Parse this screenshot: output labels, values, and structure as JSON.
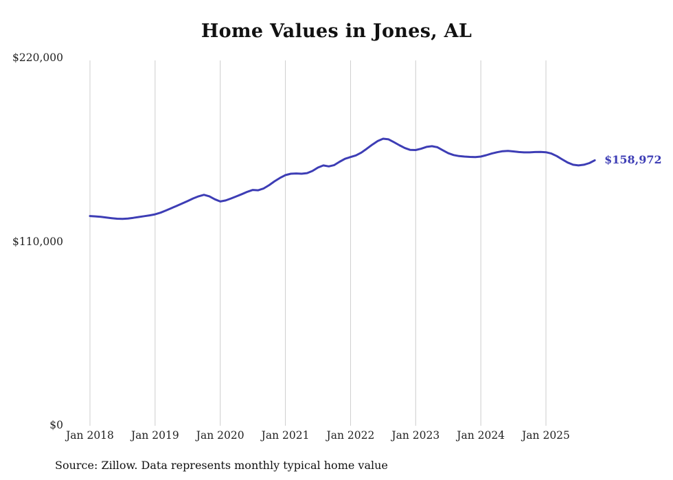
{
  "chart_data": {
    "type": "line",
    "title": "Home Values in Jones, AL",
    "source": "Source: Zillow. Data represents monthly typical home value",
    "series_name": "Monthly typical home value",
    "line_color": "#3d3db5",
    "grid_color": "#cccccc",
    "x_tick_labels": [
      "Jan 2018",
      "Jan 2019",
      "Jan 2020",
      "Jan 2021",
      "Jan 2022",
      "Jan 2023",
      "Jan 2024",
      "Jan 2025"
    ],
    "y_tick_labels": [
      "$220,000",
      "$110,000",
      "$0"
    ],
    "y_ticks": [
      220000,
      110000,
      0
    ],
    "ylim": [
      0,
      220000
    ],
    "grid": "vertical-only",
    "legend": "none",
    "end_label": "$158,972",
    "end_value": 158972,
    "x_start": "2018-01",
    "x_end": "2025-10",
    "values": [
      125600,
      125400,
      125100,
      124700,
      124300,
      124000,
      123900,
      124100,
      124500,
      125000,
      125500,
      126000,
      126600,
      127600,
      128900,
      130300,
      131700,
      133100,
      134600,
      136100,
      137400,
      138300,
      137400,
      135600,
      134300,
      134900,
      136100,
      137400,
      138700,
      140100,
      141200,
      141000,
      142100,
      144100,
      146400,
      148400,
      150100,
      150900,
      151100,
      150900,
      151300,
      152600,
      154600,
      155900,
      155300,
      156100,
      158100,
      159900,
      160900,
      161900,
      163600,
      165900,
      168300,
      170500,
      171900,
      171500,
      169800,
      168000,
      166300,
      165200,
      165100,
      165900,
      167000,
      167400,
      166800,
      165000,
      163200,
      162100,
      161500,
      161200,
      161000,
      160900,
      161200,
      162000,
      163000,
      163800,
      164400,
      164600,
      164300,
      163900,
      163700,
      163700,
      163900,
      164000,
      163800,
      163000,
      161500,
      159500,
      157600,
      156300,
      155900,
      156300,
      157300,
      158972
    ]
  }
}
